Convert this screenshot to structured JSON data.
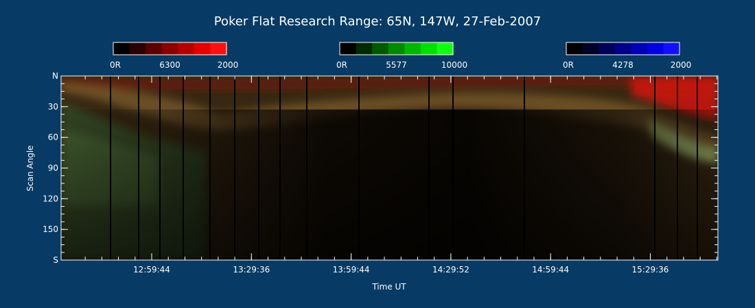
{
  "chart_data": {
    "type": "heatmap",
    "title": "Poker Flat Research Range: 65N, 147W, 27-Feb-2007",
    "xlabel": "Time UT",
    "ylabel": "Scan Angle",
    "x_ticks": [
      "12:59:44",
      "13:29:36",
      "13:59:44",
      "14:29:52",
      "14:59:44",
      "15:29:36"
    ],
    "y_ticks": [
      "N",
      "30",
      "60",
      "90",
      "120",
      "150",
      "S"
    ],
    "y_tick_values": [
      0,
      30,
      60,
      90,
      120,
      150,
      180
    ],
    "ylim": [
      0,
      180
    ],
    "grid": false,
    "colorbars": [
      {
        "name": "6300",
        "min_label": "0R",
        "max_label": "2000",
        "colors": [
          "#000000",
          "#2a0000",
          "#5a0000",
          "#8a0000",
          "#b60000",
          "#e40000",
          "#ff1010"
        ]
      },
      {
        "name": "5577",
        "min_label": "0R",
        "max_label": "10000",
        "colors": [
          "#000000",
          "#002a00",
          "#005a00",
          "#008a00",
          "#00b600",
          "#00e000",
          "#10ff10"
        ]
      },
      {
        "name": "4278",
        "min_label": "0R",
        "max_label": "2000",
        "colors": [
          "#000000",
          "#00002a",
          "#00005a",
          "#00008a",
          "#0000b6",
          "#0000e0",
          "#1010ff"
        ]
      }
    ]
  }
}
